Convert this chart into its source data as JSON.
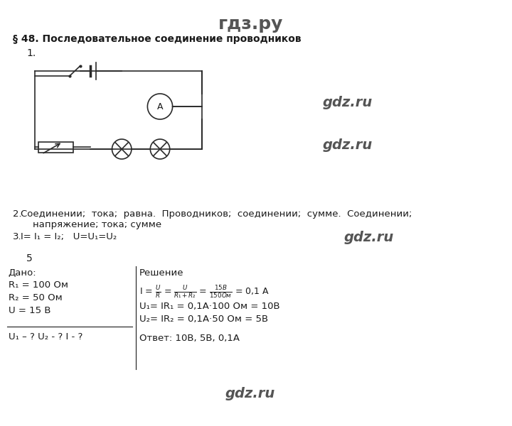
{
  "title": "гдз.ру",
  "section_title": "§ 48. Последовательное соединение проводников",
  "item1": "1.",
  "item2_label": "2.",
  "item2_text": "Соединении;  тока;  равна.  Проводников;  соединении;  сумме.  Соединении;\n    напряжение; тока; сумме",
  "item3_label": "3.",
  "item3_text": "I= I₁ = I₂;   U=U₁=U₂",
  "item5": "5",
  "dado_label": "Дано:",
  "dado_lines": [
    "R₁ = 100 Ом",
    "R₂ = 50 Ом",
    "U = 15 В"
  ],
  "dado_question": "U₁ – ? U₂ - ? I - ?",
  "solution_label": "Решение",
  "solution_line1": "I =",
  "solution_formula": "U/R = U/(R₁+R₂) = 15В/150Ом = 0,1 А",
  "solution_line2": "U₁= IR₁ = 0,1А·100 Ом = 10В",
  "solution_line3": "U₂= IR₂ = 0,1А·50 Ом = 5В",
  "answer_text": "Ответ: 10В, 5В, 0,1А",
  "watermark1": "gdz.ru",
  "watermark2": "gdz.ru",
  "watermark3": "gdz.ru",
  "watermark4": "gdz.ru",
  "bg_color": "#ffffff",
  "text_color": "#1a1a1a",
  "watermark_color": "#555555",
  "circuit_color": "#2a2a2a"
}
